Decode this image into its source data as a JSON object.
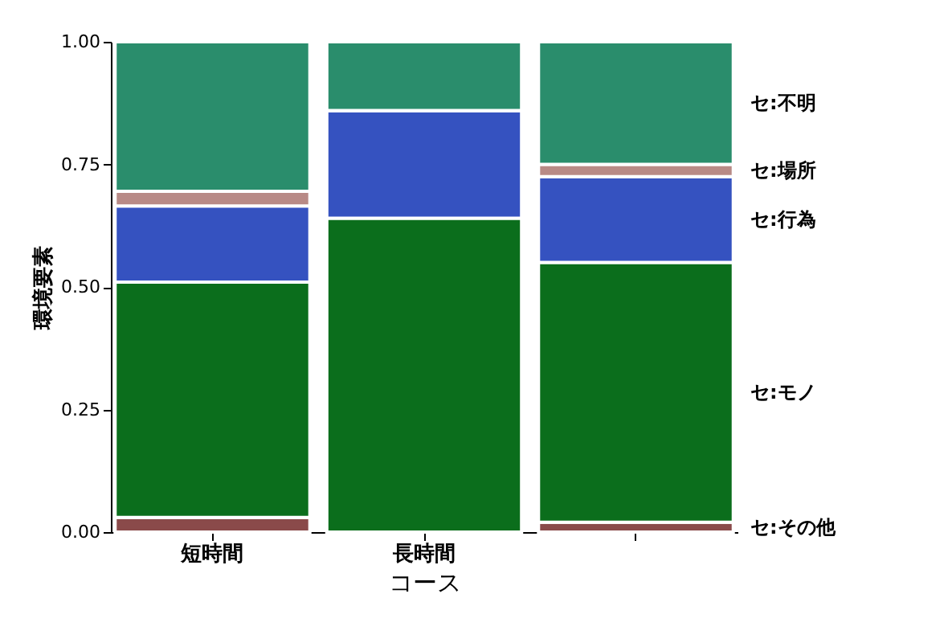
{
  "chart_data": {
    "type": "bar",
    "stacked": true,
    "xlabel": "コース",
    "ylabel": "環境要素",
    "categories": [
      "短時間",
      "長時間",
      null
    ],
    "ylim": [
      0,
      1
    ],
    "yticks": [
      {
        "value": 0,
        "label": "0.00"
      },
      {
        "value": 0.25,
        "label": "0.25"
      },
      {
        "value": 0.5,
        "label": "0.50"
      },
      {
        "value": 0.75,
        "label": "0.75"
      },
      {
        "value": 1,
        "label": "1.00"
      }
    ],
    "grid": false,
    "legend": false,
    "series": [
      {
        "name": "セ:その他",
        "color": "#8a4a4a",
        "values": [
          0.03,
          0,
          0.02
        ]
      },
      {
        "name": "セ:モノ",
        "color": "#0b6e1c",
        "values": [
          0.48,
          0.64,
          0.53
        ]
      },
      {
        "name": "セ:行為",
        "color": "#3552c0",
        "values": [
          0.155,
          0.22,
          0.175
        ]
      },
      {
        "name": "セ:場所",
        "color": "#b88a86",
        "values": [
          0.03,
          0,
          0.025
        ]
      },
      {
        "name": "セ:不明",
        "color": "#2a8d6c",
        "values": [
          0.305,
          0.14,
          0.25
        ]
      }
    ]
  }
}
